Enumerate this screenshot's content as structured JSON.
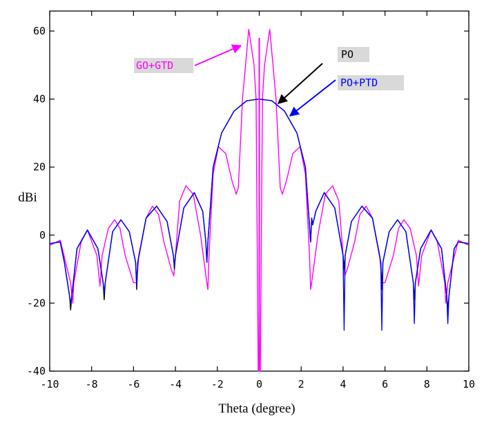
{
  "chart_data": {
    "type": "line",
    "xlabel": "Theta (degree)",
    "ylabel": "dBi",
    "xlim": [
      -10,
      10
    ],
    "ylim": [
      -40,
      65
    ],
    "xticks": [
      -10,
      -8,
      -6,
      -4,
      -2,
      0,
      2,
      4,
      6,
      8,
      10
    ],
    "yticks": [
      -40,
      -20,
      0,
      20,
      40,
      60
    ],
    "x_tick_labels": [
      "-10",
      "-8",
      "-6",
      "-4",
      "-2",
      "0",
      "2",
      "4",
      "6",
      "8",
      "10"
    ],
    "y_tick_labels": [
      "-40",
      "-20",
      "0",
      "20",
      "40",
      "60"
    ],
    "grid": false,
    "series": [
      {
        "name": "GO+GTD",
        "color": "#ff00ff",
        "x": [
          -10,
          -9.5,
          -9.0,
          -8.9,
          -8.85,
          -8.5,
          -8.2,
          -7.75,
          -7.6,
          -7.5,
          -7.2,
          -6.9,
          -6.65,
          -6.4,
          -6.0,
          -5.85,
          -5.75,
          -5.4,
          -5.1,
          -4.8,
          -4.55,
          -4.2,
          -4.08,
          -4.0,
          -3.8,
          -3.5,
          -3.15,
          -2.8,
          -2.5,
          -2.45,
          -2.4,
          -2.2,
          -1.95,
          -1.6,
          -1.3,
          -1.1,
          -1.0,
          -0.8,
          -0.5,
          -0.25,
          -0.15,
          -0.05,
          0,
          0.05,
          0.15,
          0.25,
          0.5,
          0.8,
          1.0,
          1.1,
          1.3,
          1.6,
          1.95,
          2.2,
          2.4,
          2.45,
          2.5,
          2.8,
          3.15,
          3.5,
          3.8,
          4.0,
          4.08,
          4.2,
          4.55,
          4.8,
          5.1,
          5.4,
          5.75,
          5.85,
          6.0,
          6.4,
          6.65,
          6.9,
          7.2,
          7.5,
          7.6,
          7.75,
          8.2,
          8.5,
          8.85,
          8.9,
          9.0,
          9.5,
          10
        ],
        "values": [
          -3,
          -1.5,
          -14,
          -20,
          -14,
          -2,
          1.5,
          -6,
          -15,
          -6,
          2,
          4.5,
          2,
          -6,
          -14,
          -14,
          -6,
          5,
          8.5,
          6,
          -2,
          -10,
          -12,
          -6,
          10,
          14.5,
          12,
          0,
          -14,
          -16,
          -6,
          18,
          26,
          24,
          16,
          12,
          14,
          40,
          60.5,
          50,
          40,
          -40,
          -40,
          -40,
          40,
          50,
          60.5,
          40,
          14,
          12,
          16,
          24,
          26,
          18,
          -6,
          -16,
          -14,
          0,
          12,
          14.5,
          10,
          -6,
          -12,
          -10,
          -2,
          6,
          8.5,
          5,
          -6,
          -14,
          -14,
          -6,
          2,
          4.5,
          2,
          -6,
          -15,
          -6,
          1.5,
          -2,
          -14,
          -20,
          -14,
          -1.5,
          -3
        ]
      },
      {
        "name": "PO",
        "color": "#000000",
        "x": [
          -10,
          -9.5,
          -9.3,
          -9.05,
          -9.0,
          -8.95,
          -8.7,
          -8.2,
          -7.7,
          -7.45,
          -7.4,
          -7.35,
          -7.0,
          -6.6,
          -6.2,
          -5.9,
          -5.85,
          -5.8,
          -5.4,
          -4.9,
          -4.4,
          -4.1,
          -4.05,
          -4.0,
          -3.6,
          -3.1,
          -2.7,
          -2.55,
          -2.5,
          -2.45,
          -2.2,
          -1.8,
          -1.2,
          -0.6,
          0,
          0.6,
          1.2,
          1.8,
          2.2,
          2.45,
          2.5,
          2.55,
          2.7,
          3.1,
          3.6,
          4.0,
          4.05,
          4.1,
          4.4,
          4.9,
          5.4,
          5.8,
          5.85,
          5.9,
          6.2,
          6.6,
          7.0,
          7.35,
          7.4,
          7.45,
          7.7,
          8.2,
          8.7,
          8.95,
          9.0,
          9.05,
          9.3,
          9.5,
          10
        ],
        "values": [
          -2.5,
          -2,
          -8,
          -18,
          -22,
          -18,
          -4,
          1.5,
          -4,
          -14,
          -19,
          -14,
          1,
          4.5,
          1,
          -8,
          -16,
          -8,
          5,
          8.5,
          4,
          -6,
          -10,
          -6,
          8,
          12.5,
          7,
          -2,
          -8,
          -2,
          20,
          30,
          36.5,
          39.5,
          40,
          39.5,
          36.5,
          30,
          20,
          -2,
          5,
          3,
          7,
          12.5,
          8,
          -6,
          -10,
          -6,
          4,
          8.5,
          5,
          -8,
          -16,
          -8,
          1,
          4.5,
          1,
          -14,
          -19,
          -14,
          -4,
          1.5,
          -4,
          -18,
          -22,
          -18,
          -4,
          -2,
          -2.5
        ]
      },
      {
        "name": "PO+PTD",
        "color": "#0000ff",
        "x": [
          -10,
          -9.5,
          -9.3,
          -9.05,
          -9.0,
          -8.95,
          -8.7,
          -8.2,
          -7.7,
          -7.45,
          -7.4,
          -7.35,
          -7.0,
          -6.6,
          -6.2,
          -5.9,
          -5.85,
          -5.8,
          -5.4,
          -4.9,
          -4.4,
          -4.1,
          -4.05,
          -4.0,
          -3.6,
          -3.1,
          -2.7,
          -2.55,
          -2.5,
          -2.45,
          -2.2,
          -1.8,
          -1.2,
          -0.6,
          0,
          0.6,
          1.2,
          1.8,
          2.2,
          2.45,
          2.5,
          2.55,
          2.7,
          3.1,
          3.6,
          4.0,
          4.05,
          4.1,
          4.4,
          4.9,
          5.4,
          5.8,
          5.85,
          5.9,
          6.2,
          6.6,
          7.0,
          7.35,
          7.4,
          7.45,
          7.7,
          8.2,
          8.7,
          8.95,
          9.0,
          9.05,
          9.3,
          9.5,
          10
        ],
        "values": [
          -2.5,
          -2,
          -8,
          -18,
          -20,
          -18,
          -4,
          1.5,
          -4,
          -14,
          -17,
          -14,
          1,
          4.5,
          1,
          -8,
          -15,
          -8,
          5,
          8.5,
          4,
          -6,
          -9,
          -6,
          8,
          12.5,
          7,
          -2,
          -8,
          -2,
          20,
          30,
          36.5,
          39.5,
          40,
          39.5,
          36.5,
          30,
          20,
          -2,
          5,
          3,
          7,
          12.5,
          8,
          -6,
          -28,
          -6,
          4,
          8.5,
          5,
          -8,
          -28,
          -8,
          1,
          4.5,
          1,
          -14,
          -26,
          -14,
          -4,
          1.5,
          -4,
          -18,
          -26,
          -18,
          -4,
          -2,
          -2.5
        ]
      }
    ],
    "annotations": [
      {
        "text": "GO+GTD",
        "color": "#ff00ff",
        "box_color": "#d9d9d9"
      },
      {
        "text": "PO",
        "color": "#000000",
        "box_color": "#d9d9d9"
      },
      {
        "text": "PO+PTD",
        "color": "#0000ff",
        "box_color": "#d9d9d9"
      }
    ]
  }
}
